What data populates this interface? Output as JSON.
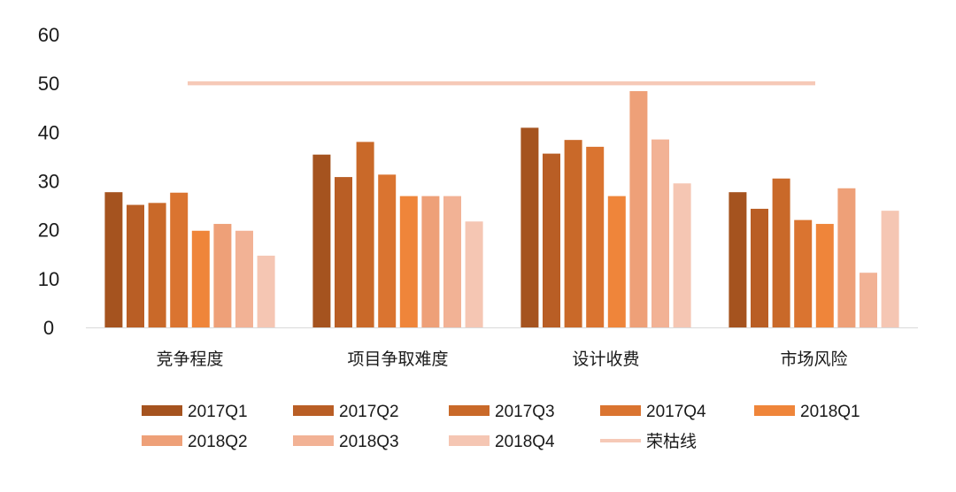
{
  "chart_data": {
    "type": "bar",
    "title": "",
    "xlabel": "",
    "ylabel": "",
    "ylim": [
      0,
      60
    ],
    "yticks": [
      0,
      10,
      20,
      30,
      40,
      50,
      60
    ],
    "grid": false,
    "legend_position": "bottom",
    "categories": [
      "竞争程度",
      "项目争取难度",
      "设计收费",
      "市场风险"
    ],
    "series": [
      {
        "name": "2017Q1",
        "color": "#A5531F",
        "values": [
          27.7,
          35.4,
          40.9,
          27.7
        ]
      },
      {
        "name": "2017Q2",
        "color": "#B95E25",
        "values": [
          25.1,
          30.8,
          35.6,
          24.3
        ]
      },
      {
        "name": "2017Q3",
        "color": "#C96929",
        "values": [
          25.5,
          38.0,
          38.4,
          30.5
        ]
      },
      {
        "name": "2017Q4",
        "color": "#DA7430",
        "values": [
          27.6,
          31.3,
          37.0,
          22.0
        ]
      },
      {
        "name": "2018Q1",
        "color": "#EF853A",
        "values": [
          19.8,
          26.9,
          26.9,
          21.2
        ]
      },
      {
        "name": "2018Q2",
        "color": "#EEA078",
        "values": [
          21.2,
          26.9,
          48.4,
          28.5
        ]
      },
      {
        "name": "2018Q3",
        "color": "#F2B295",
        "values": [
          19.8,
          26.9,
          38.5,
          11.2
        ]
      },
      {
        "name": "2018Q4",
        "color": "#F5C6B3",
        "values": [
          14.7,
          21.7,
          29.5,
          23.9
        ]
      }
    ],
    "reference_line": {
      "name": "荣枯线",
      "value": 50,
      "color": "#F6C9B7"
    }
  }
}
